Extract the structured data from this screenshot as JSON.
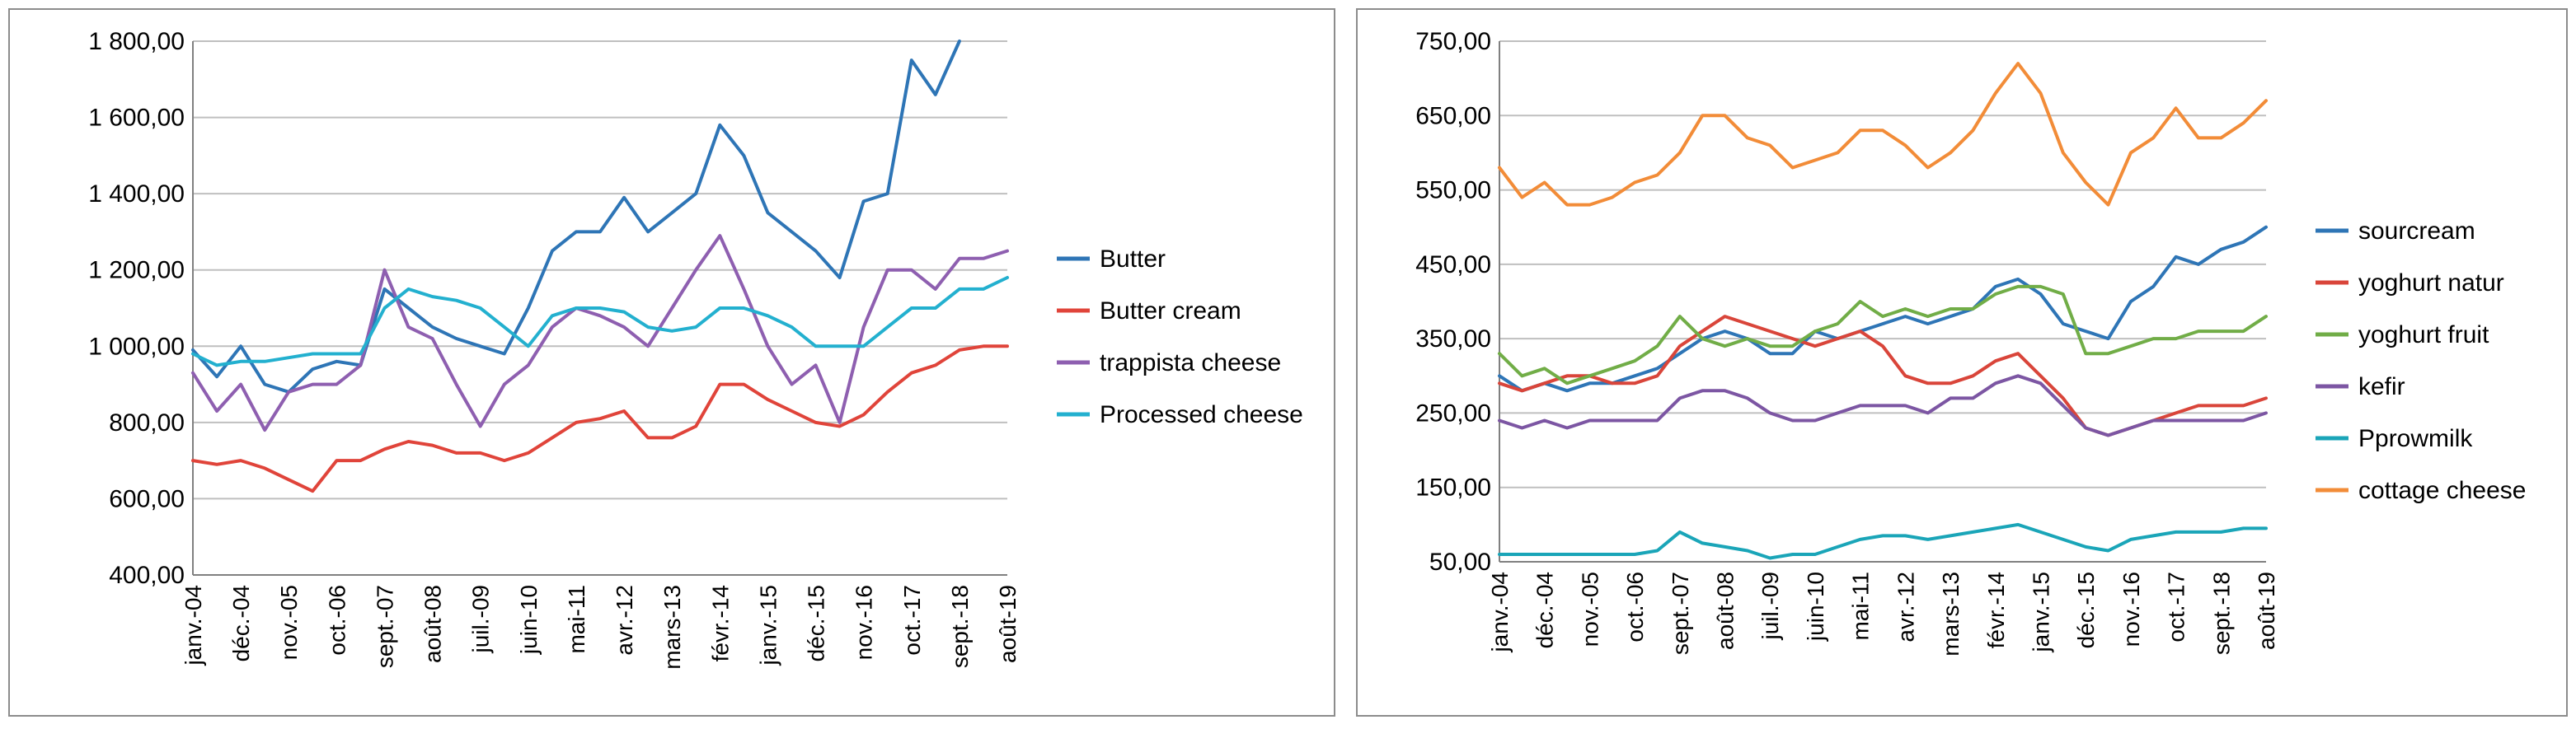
{
  "chart_data": [
    {
      "type": "line",
      "title": "",
      "xlabel": "",
      "ylabel": "",
      "ylim": [
        400,
        1800
      ],
      "y_ticks": [
        "400,00",
        "600,00",
        "800,00",
        "1 000,00",
        "1 200,00",
        "1 400,00",
        "1 600,00",
        "1 800,00"
      ],
      "x_tick_labels": [
        "janv.-04",
        "déc.-04",
        "nov.-05",
        "oct.-06",
        "sept.-07",
        "août-08",
        "juil.-09",
        "juin-10",
        "mai-11",
        "avr.-12",
        "mars-13",
        "févr.-14",
        "janv.-15",
        "déc.-15",
        "nov.-16",
        "oct.-17",
        "sept.-18",
        "août-19"
      ],
      "x": [
        "janv.-04",
        "juil.-04",
        "déc.-04",
        "juin-05",
        "nov.-05",
        "mai-06",
        "oct.-06",
        "mars-07",
        "sept.-07",
        "févr.-08",
        "août-08",
        "janv.-09",
        "juil.-09",
        "déc.-09",
        "juin-10",
        "nov.-10",
        "mai-11",
        "oct.-11",
        "avr.-12",
        "sept.-12",
        "mars-13",
        "août-13",
        "févr.-14",
        "juil.-14",
        "janv.-15",
        "juin-15",
        "déc.-15",
        "mai-16",
        "nov.-16",
        "avr.-17",
        "oct.-17",
        "mars-18",
        "sept.-18",
        "févr.-19",
        "août-19"
      ],
      "grid": true,
      "legend_position": "right",
      "series": [
        {
          "name": "Butter",
          "color": "#2e75b6",
          "values": [
            990,
            920,
            1000,
            900,
            880,
            940,
            960,
            950,
            1150,
            1100,
            1050,
            1020,
            1000,
            980,
            1100,
            1250,
            1300,
            1300,
            1390,
            1300,
            1350,
            1400,
            1580,
            1500,
            1350,
            1300,
            1250,
            1180,
            1380,
            1400,
            1750,
            1660,
            1800,
            null,
            null
          ]
        },
        {
          "name": "Butter cream",
          "color": "#e0443a",
          "values": [
            700,
            690,
            700,
            680,
            650,
            620,
            700,
            700,
            730,
            750,
            740,
            720,
            720,
            700,
            720,
            760,
            800,
            810,
            830,
            760,
            760,
            790,
            900,
            900,
            860,
            830,
            800,
            790,
            820,
            880,
            930,
            950,
            990,
            1000,
            1000
          ]
        },
        {
          "name": "trappista cheese",
          "color": "#8e5fb0",
          "values": [
            930,
            830,
            900,
            780,
            880,
            900,
            900,
            950,
            1200,
            1050,
            1020,
            900,
            790,
            900,
            950,
            1050,
            1100,
            1080,
            1050,
            1000,
            1100,
            1200,
            1290,
            1150,
            1000,
            900,
            950,
            800,
            1050,
            1200,
            1200,
            1150,
            1230,
            1230,
            1250
          ]
        },
        {
          "name": "Processed cheese",
          "color": "#23b0cf",
          "values": [
            980,
            950,
            960,
            960,
            970,
            980,
            980,
            980,
            1100,
            1150,
            1130,
            1120,
            1100,
            1050,
            1000,
            1080,
            1100,
            1100,
            1090,
            1050,
            1040,
            1050,
            1100,
            1100,
            1080,
            1050,
            1000,
            1000,
            1000,
            1050,
            1100,
            1100,
            1150,
            1150,
            1180
          ]
        }
      ]
    },
    {
      "type": "line",
      "title": "",
      "xlabel": "",
      "ylabel": "",
      "ylim": [
        50,
        750
      ],
      "y_ticks": [
        "50,00",
        "150,00",
        "250,00",
        "350,00",
        "450,00",
        "550,00",
        "650,00",
        "750,00"
      ],
      "x_tick_labels": [
        "janv.-04",
        "déc.-04",
        "nov.-05",
        "oct.-06",
        "sept.-07",
        "août-08",
        "juil.-09",
        "juin-10",
        "mai-11",
        "avr.-12",
        "mars-13",
        "févr.-14",
        "janv.-15",
        "déc.-15",
        "nov.-16",
        "oct.-17",
        "sept.-18",
        "août-19"
      ],
      "x": [
        "janv.-04",
        "juil.-04",
        "déc.-04",
        "juin-05",
        "nov.-05",
        "mai-06",
        "oct.-06",
        "mars-07",
        "sept.-07",
        "févr.-08",
        "août-08",
        "janv.-09",
        "juil.-09",
        "déc.-09",
        "juin-10",
        "nov.-10",
        "mai-11",
        "oct.-11",
        "avr.-12",
        "sept.-12",
        "mars-13",
        "août-13",
        "févr.-14",
        "juil.-14",
        "janv.-15",
        "juin-15",
        "déc.-15",
        "mai-16",
        "nov.-16",
        "avr.-17",
        "oct.-17",
        "mars-18",
        "sept.-18",
        "févr.-19",
        "août-19"
      ],
      "grid": true,
      "legend_position": "right",
      "series": [
        {
          "name": "sourcream",
          "color": "#2e75b6",
          "values": [
            300,
            280,
            290,
            280,
            290,
            290,
            300,
            310,
            330,
            350,
            360,
            350,
            330,
            330,
            360,
            350,
            360,
            370,
            380,
            370,
            380,
            390,
            420,
            430,
            410,
            370,
            360,
            350,
            400,
            420,
            460,
            450,
            470,
            480,
            500
          ]
        },
        {
          "name": "yoghurt natur",
          "color": "#d9453a",
          "values": [
            290,
            280,
            290,
            300,
            300,
            290,
            290,
            300,
            340,
            360,
            380,
            370,
            360,
            350,
            340,
            350,
            360,
            340,
            300,
            290,
            290,
            300,
            320,
            330,
            300,
            270,
            230,
            220,
            230,
            240,
            250,
            260,
            260,
            260,
            270
          ]
        },
        {
          "name": "yoghurt fruit",
          "color": "#71ad47",
          "values": [
            330,
            300,
            310,
            290,
            300,
            310,
            320,
            340,
            380,
            350,
            340,
            350,
            340,
            340,
            360,
            370,
            400,
            380,
            390,
            380,
            390,
            390,
            410,
            420,
            420,
            410,
            330,
            330,
            340,
            350,
            350,
            360,
            360,
            360,
            380
          ]
        },
        {
          "name": "kefir",
          "color": "#7c56a3",
          "values": [
            240,
            230,
            240,
            230,
            240,
            240,
            240,
            240,
            270,
            280,
            280,
            270,
            250,
            240,
            240,
            250,
            260,
            260,
            260,
            250,
            270,
            270,
            290,
            300,
            290,
            260,
            230,
            220,
            230,
            240,
            240,
            240,
            240,
            240,
            250
          ]
        },
        {
          "name": "Pprowmilk",
          "color": "#1aa5b8",
          "values": [
            60,
            60,
            60,
            60,
            60,
            60,
            60,
            65,
            90,
            75,
            70,
            65,
            55,
            60,
            60,
            70,
            80,
            85,
            85,
            80,
            85,
            90,
            95,
            100,
            90,
            80,
            70,
            65,
            80,
            85,
            90,
            90,
            90,
            95,
            95
          ]
        },
        {
          "name": "cottage cheese",
          "color": "#f28c38",
          "values": [
            580,
            540,
            560,
            530,
            530,
            540,
            560,
            570,
            600,
            650,
            650,
            620,
            610,
            580,
            590,
            600,
            630,
            630,
            610,
            580,
            600,
            630,
            680,
            720,
            680,
            600,
            560,
            530,
            600,
            620,
            660,
            620,
            620,
            640,
            670
          ]
        }
      ]
    }
  ]
}
